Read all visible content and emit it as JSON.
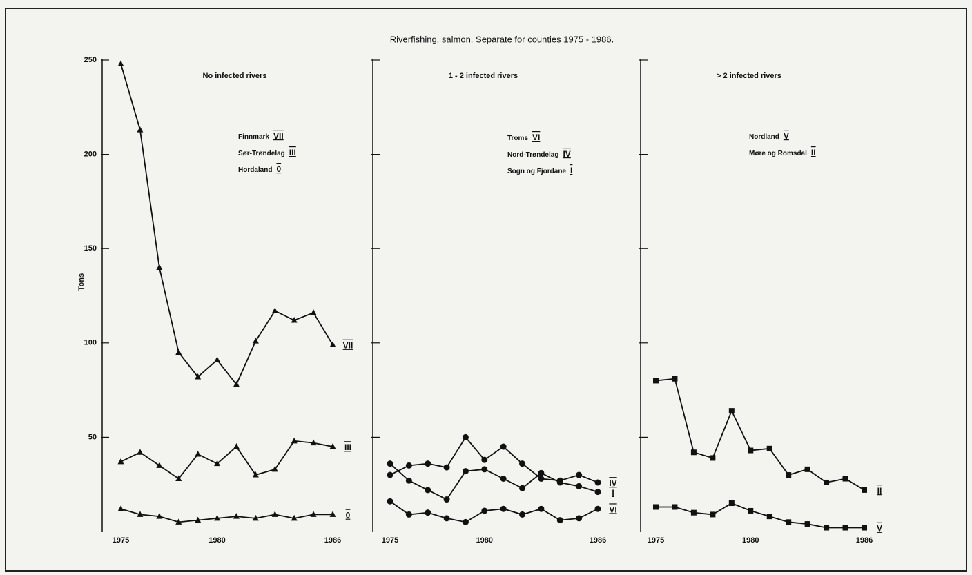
{
  "title": "Riverfishing, salmon.  Separate for counties 1975 - 1986.",
  "chart_data": [
    {
      "type": "line",
      "title": "No infected rivers",
      "ylabel": "Tons",
      "marker": "triangle",
      "x": [
        1975,
        1976,
        1977,
        1978,
        1979,
        1980,
        1981,
        1982,
        1983,
        1984,
        1985,
        1986
      ],
      "xlim": [
        1975,
        1986
      ],
      "xticks": [
        1975,
        1980,
        1986
      ],
      "ylim": [
        0,
        250
      ],
      "yticks": [
        50,
        100,
        150,
        200,
        250
      ],
      "ytick_labels": true,
      "series": [
        {
          "name": "Finnmark",
          "label": "VII",
          "color": "#111111",
          "values": [
            248,
            213,
            140,
            95,
            82,
            91,
            78,
            101,
            117,
            112,
            116,
            99
          ]
        },
        {
          "name": "Sør-Trøndelag",
          "label": "III",
          "color": "#111111",
          "values": [
            37,
            42,
            35,
            28,
            41,
            36,
            45,
            30,
            33,
            48,
            47,
            45
          ]
        },
        {
          "name": "Hordaland",
          "label": "0",
          "color": "#111111",
          "values": [
            12,
            9,
            8,
            5,
            6,
            7,
            8,
            7,
            9,
            7,
            9,
            9
          ]
        }
      ]
    },
    {
      "type": "line",
      "title": "1 - 2 infected rivers",
      "marker": "circle",
      "x": [
        1975,
        1976,
        1977,
        1978,
        1979,
        1980,
        1981,
        1982,
        1983,
        1984,
        1985,
        1986
      ],
      "xlim": [
        1975,
        1986
      ],
      "xticks": [
        1975,
        1980,
        1986
      ],
      "ylim": [
        0,
        250
      ],
      "yticks": [
        50,
        100,
        150,
        200,
        250
      ],
      "ytick_labels": false,
      "series": [
        {
          "name": "Troms",
          "label": "VI",
          "color": "#111111",
          "values": [
            16,
            9,
            10,
            7,
            5,
            11,
            12,
            9,
            12,
            6,
            7,
            12
          ]
        },
        {
          "name": "Nord-Trøndelag",
          "label": "IV",
          "color": "#111111",
          "values": [
            30,
            35,
            36,
            34,
            50,
            38,
            45,
            36,
            28,
            27,
            30,
            26
          ]
        },
        {
          "name": "Sogn og Fjordane",
          "label": "I",
          "color": "#111111",
          "values": [
            36,
            27,
            22,
            17,
            32,
            33,
            28,
            23,
            31,
            26,
            24,
            21
          ]
        }
      ]
    },
    {
      "type": "line",
      "title": "> 2 infected rivers",
      "marker": "square",
      "x": [
        1975,
        1976,
        1977,
        1978,
        1979,
        1980,
        1981,
        1982,
        1983,
        1984,
        1985,
        1986
      ],
      "xlim": [
        1975,
        1986
      ],
      "xticks": [
        1975,
        1980,
        1986
      ],
      "ylim": [
        0,
        250
      ],
      "yticks": [
        50,
        100,
        150,
        200,
        250
      ],
      "ytick_labels": false,
      "series": [
        {
          "name": "Nordland",
          "label": "V",
          "color": "#111111",
          "values": [
            13,
            13,
            10,
            9,
            15,
            11,
            8,
            5,
            4,
            2,
            2,
            2
          ]
        },
        {
          "name": "Møre og Romsdal",
          "label": "II",
          "color": "#111111",
          "values": [
            80,
            81,
            42,
            39,
            64,
            43,
            44,
            30,
            33,
            26,
            28,
            22
          ]
        }
      ]
    }
  ]
}
